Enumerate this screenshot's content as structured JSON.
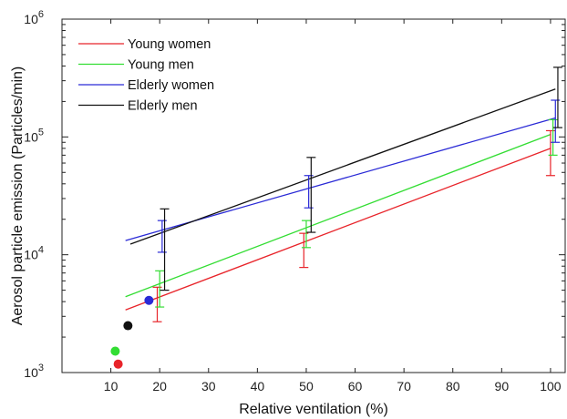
{
  "chart_data": {
    "type": "line",
    "x_label": "Relative ventilation (%)",
    "y_label": "Aerosol particle emission (Particles/min)",
    "y_scale": "log",
    "xlim": [
      0,
      103
    ],
    "ylim": [
      1000,
      1000000
    ],
    "x_ticks": [
      10,
      20,
      30,
      40,
      50,
      60,
      70,
      80,
      90,
      100
    ],
    "y_ticks": [
      {
        "value": 1000,
        "base": "10",
        "exp": "3"
      },
      {
        "value": 10000,
        "base": "10",
        "exp": "4"
      },
      {
        "value": 100000,
        "base": "10",
        "exp": "5"
      },
      {
        "value": 1000000,
        "base": "10",
        "exp": "6"
      }
    ],
    "legend_position": "top-left",
    "series": [
      {
        "name": "Young women",
        "color": "#e8242a",
        "fit_line": [
          [
            13,
            3400
          ],
          [
            100,
            80000
          ]
        ],
        "points": [
          {
            "x": 19.5,
            "y": 4100,
            "low": 2700,
            "high": 5300
          },
          {
            "x": 49.5,
            "y": 11600,
            "low": 7800,
            "high": 15200
          },
          {
            "x": 100,
            "y": 80000,
            "low": 47000,
            "high": 113000
          }
        ],
        "resting_point": {
          "x": 11.5,
          "y": 1180
        }
      },
      {
        "name": "Young men",
        "color": "#33dd33",
        "fit_line": [
          [
            13,
            4400
          ],
          [
            100,
            105000
          ]
        ],
        "points": [
          {
            "x": 20,
            "y": 5200,
            "low": 3600,
            "high": 7300
          },
          {
            "x": 50,
            "y": 15500,
            "low": 11500,
            "high": 19500
          },
          {
            "x": 100.5,
            "y": 105000,
            "low": 70000,
            "high": 140000
          }
        ],
        "resting_point": {
          "x": 10.9,
          "y": 1520
        }
      },
      {
        "name": "Elderly women",
        "color": "#2a2ad6",
        "fit_line": [
          [
            13,
            13200
          ],
          [
            101,
            145000
          ]
        ],
        "points": [
          {
            "x": 20.5,
            "y": 14000,
            "low": 10500,
            "high": 19500
          },
          {
            "x": 50.5,
            "y": 34000,
            "low": 25000,
            "high": 47000
          },
          {
            "x": 101,
            "y": 145000,
            "low": 90000,
            "high": 205000
          }
        ],
        "resting_point": {
          "x": 17.8,
          "y": 4100
        }
      },
      {
        "name": "Elderly men",
        "color": "#111111",
        "fit_line": [
          [
            14,
            12300
          ],
          [
            101,
            255000
          ]
        ],
        "points": [
          {
            "x": 21,
            "y": 11500,
            "low": 5000,
            "high": 24500
          },
          {
            "x": 51,
            "y": 39000,
            "low": 15500,
            "high": 67000
          },
          {
            "x": 101.5,
            "y": 250000,
            "low": 120000,
            "high": 390000
          }
        ],
        "resting_point": {
          "x": 13.5,
          "y": 2500
        }
      }
    ]
  }
}
